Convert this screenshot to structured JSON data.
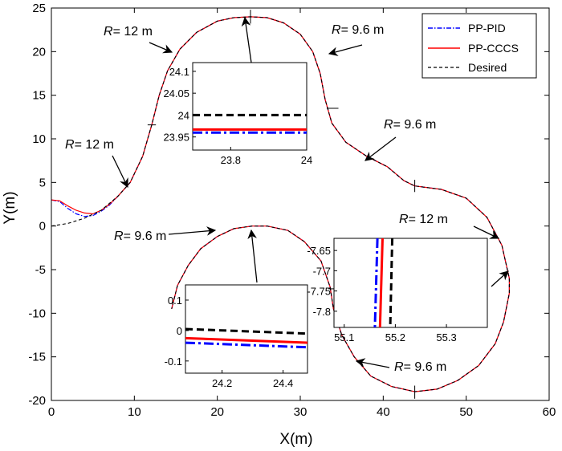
{
  "chart_data": {
    "type": "line",
    "xlabel": "X(m)",
    "ylabel": "Y(m)",
    "xlim": [
      0,
      60
    ],
    "ylim": [
      -20,
      25
    ],
    "xticks": [
      0,
      10,
      20,
      30,
      40,
      50,
      60
    ],
    "yticks": [
      -20,
      -15,
      -10,
      -5,
      0,
      5,
      10,
      15,
      20,
      25
    ],
    "grid": false,
    "legend_position": "top-right",
    "series": [
      {
        "name": "PP-PID",
        "color": "#0000ff",
        "style": "dash-dot"
      },
      {
        "name": "PP-CCCS",
        "color": "#ff0000",
        "style": "solid"
      },
      {
        "name": "Desired",
        "color": "#000000",
        "style": "dashed"
      }
    ],
    "path": {
      "desired": [
        [
          0,
          0
        ],
        [
          2,
          0.3
        ],
        [
          4,
          0.9
        ],
        [
          6,
          1.8
        ],
        [
          8,
          3.4
        ],
        [
          9.5,
          5
        ],
        [
          11,
          8
        ],
        [
          12.1,
          11.6
        ],
        [
          13,
          15
        ],
        [
          14,
          17.8
        ],
        [
          15.5,
          20.3
        ],
        [
          17.5,
          22.2
        ],
        [
          20,
          23.5
        ],
        [
          22,
          23.9
        ],
        [
          24,
          24
        ],
        [
          26,
          23.9
        ],
        [
          28,
          23.3
        ],
        [
          30,
          22
        ],
        [
          31.5,
          20
        ],
        [
          32.4,
          17.5
        ],
        [
          33,
          14.5
        ],
        [
          33.8,
          11.8
        ],
        [
          35.5,
          9.6
        ],
        [
          38,
          8
        ],
        [
          40.5,
          6.8
        ],
        [
          42.5,
          5.2
        ],
        [
          43.8,
          4.6
        ],
        [
          47,
          4.2
        ],
        [
          50,
          3.2
        ],
        [
          52.5,
          1
        ],
        [
          54.3,
          -2.2
        ],
        [
          55.2,
          -6
        ],
        [
          55.2,
          -7.7
        ],
        [
          54.5,
          -11
        ],
        [
          53.5,
          -13.5
        ],
        [
          51.5,
          -16
        ],
        [
          49,
          -17.7
        ],
        [
          46.5,
          -18.7
        ],
        [
          43.8,
          -19
        ],
        [
          41,
          -18.4
        ],
        [
          38.5,
          -17.2
        ],
        [
          36.5,
          -15
        ],
        [
          35,
          -12.5
        ],
        [
          34,
          -9.5
        ],
        [
          33.6,
          -7
        ],
        [
          32.5,
          -4
        ],
        [
          30.5,
          -1.8
        ],
        [
          28.5,
          -0.5
        ],
        [
          26,
          0
        ],
        [
          24.2,
          0
        ],
        [
          22,
          -0.3
        ],
        [
          20,
          -1.2
        ],
        [
          18,
          -2.6
        ],
        [
          16.5,
          -4.5
        ],
        [
          15.2,
          -6.8
        ],
        [
          14.5,
          -9.5
        ]
      ],
      "pid_start": [
        [
          0,
          3
        ],
        [
          1,
          2.8
        ],
        [
          2,
          2
        ],
        [
          3,
          1.4
        ],
        [
          4,
          1.1
        ],
        [
          5,
          1.2
        ],
        [
          6,
          1.7
        ],
        [
          7,
          2.4
        ],
        [
          8,
          3.4
        ]
      ],
      "cccs_start": [
        [
          0,
          3
        ],
        [
          1,
          2.9
        ],
        [
          2,
          2.3
        ],
        [
          3,
          1.8
        ],
        [
          4,
          1.5
        ],
        [
          5,
          1.4
        ],
        [
          6,
          1.8
        ],
        [
          7,
          2.5
        ],
        [
          8,
          3.4
        ]
      ]
    },
    "annotations": [
      {
        "text": "R= 12 m",
        "radius_m": 12
      },
      {
        "text": "R= 9.6 m",
        "radius_m": 9.6
      },
      {
        "text": "R= 9.6 m",
        "radius_m": 9.6
      },
      {
        "text": "R= 12 m",
        "radius_m": 12
      },
      {
        "text": "R= 12 m",
        "radius_m": 12
      },
      {
        "text": "R= 9.6 m",
        "radius_m": 9.6
      },
      {
        "text": "R= 9.6 m",
        "radius_m": 9.6
      }
    ],
    "insets": [
      {
        "name": "inset-top",
        "xlim": [
          23.7,
          24.0
        ],
        "ylim": [
          23.92,
          24.12
        ],
        "xtick_labels": [
          "23.8",
          "24"
        ],
        "ytick_labels": [
          "24.1",
          "24.05",
          "24",
          "23.95"
        ],
        "desired_y": [
          24.0,
          24.0
        ],
        "cccs_y": [
          23.967,
          23.967
        ],
        "pid_y": [
          23.96,
          23.96
        ]
      },
      {
        "name": "inset-bottom-left",
        "xlim": [
          24.08,
          24.48
        ],
        "ylim": [
          -0.14,
          0.15
        ],
        "xtick_labels": [
          "24.2",
          "24.4"
        ],
        "ytick_labels": [
          "0.1",
          "0",
          "-0.1"
        ],
        "desired_y": [
          0.005,
          -0.01
        ],
        "cccs_y": [
          -0.025,
          -0.04
        ],
        "pid_y": [
          -0.04,
          -0.055
        ]
      },
      {
        "name": "inset-right",
        "xlim": [
          55.08,
          55.38
        ],
        "ylim": [
          -7.84,
          -7.62
        ],
        "xtick_labels": [
          "55.1",
          "55.2",
          "55.3"
        ],
        "ytick_labels": [
          "-7.65",
          "-7.7",
          "-7.75",
          "-7.8"
        ],
        "desired_x": [
          55.194,
          55.19
        ],
        "cccs_x": [
          55.175,
          55.17
        ],
        "pid_x": [
          55.165,
          55.16
        ]
      }
    ]
  },
  "legend": {
    "pid": "PP-PID",
    "cccs": "PP-CCCS",
    "desired": "Desired"
  }
}
